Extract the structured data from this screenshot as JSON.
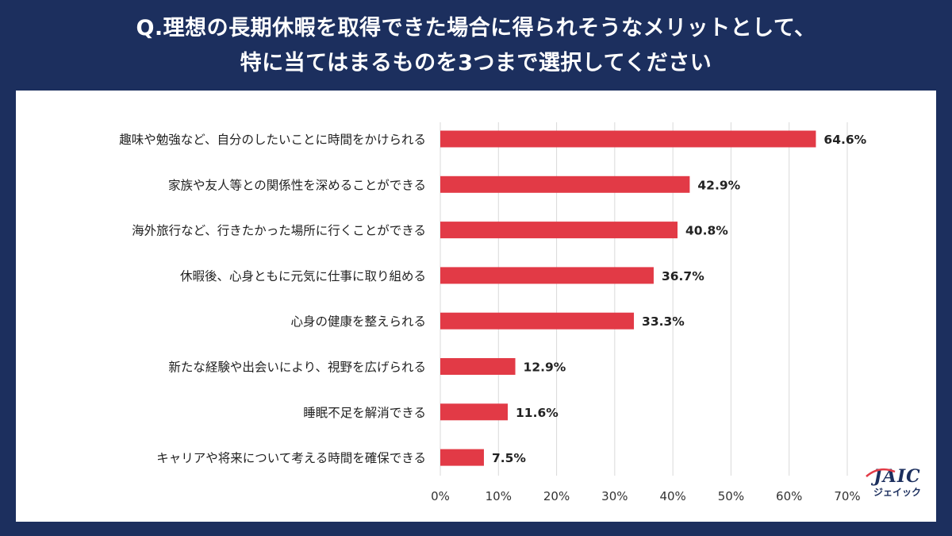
{
  "title": {
    "line1": "Q.理想の長期休暇を取得できた場合に得られそうなメリットとして、",
    "line2": "特に当てはまるものを3つまで選択してください"
  },
  "logo": {
    "main": "JAIC",
    "sub": "ジェイック"
  },
  "colors": {
    "background": "#1c2f5e",
    "bar": "#e23a46",
    "grid": "#d9d9d9",
    "text": "#222222"
  },
  "chart_data": {
    "type": "bar",
    "orientation": "horizontal",
    "categories": [
      "趣味や勉強など、自分のしたいことに時間をかけられる",
      "家族や友人等との関係性を深めることができる",
      "海外旅行など、行きたかった場所に行くことができる",
      "休暇後、心身ともに元気に仕事に取り組める",
      "心身の健康を整えられる",
      "新たな経験や出会いにより、視野を広げられる",
      "睡眠不足を解消できる",
      "キャリアや将来について考える時間を確保できる"
    ],
    "values": [
      64.6,
      42.9,
      40.8,
      36.7,
      33.3,
      12.9,
      11.6,
      7.5
    ],
    "value_labels": [
      "64.6%",
      "42.9%",
      "40.8%",
      "36.7%",
      "33.3%",
      "12.9%",
      "11.6%",
      "7.5%"
    ],
    "xlim": [
      0,
      70
    ],
    "ticks": [
      0,
      10,
      20,
      30,
      40,
      50,
      60,
      70
    ],
    "tick_labels": [
      "0%",
      "10%",
      "20%",
      "30%",
      "40%",
      "50%",
      "60%",
      "70%"
    ],
    "grid": true
  }
}
